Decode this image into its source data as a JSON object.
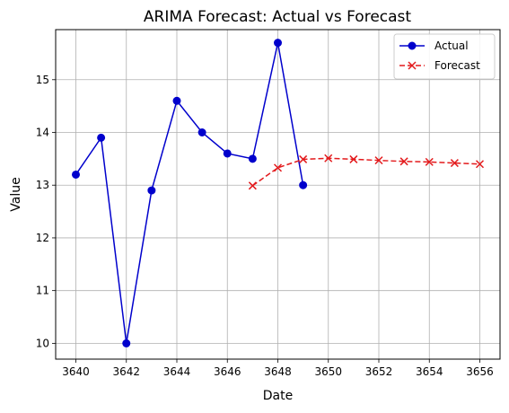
{
  "chart_data": {
    "type": "line",
    "title": "ARIMA Forecast: Actual vs Forecast",
    "xlabel": "Date",
    "ylabel": "Value",
    "xlim": [
      3639.2,
      3656.8
    ],
    "ylim": [
      9.7,
      15.95
    ],
    "xticks": [
      3640,
      3642,
      3644,
      3646,
      3648,
      3650,
      3652,
      3654,
      3656
    ],
    "yticks": [
      10,
      11,
      12,
      13,
      14,
      15
    ],
    "grid": true,
    "legend_position": "top-right",
    "series": [
      {
        "name": "Actual",
        "color": "#0000cc",
        "marker": "circle",
        "linestyle": "solid",
        "x": [
          3640,
          3641,
          3642,
          3643,
          3644,
          3645,
          3646,
          3647,
          3648,
          3649
        ],
        "y": [
          13.2,
          13.9,
          10.0,
          12.9,
          14.6,
          14.0,
          13.6,
          13.5,
          15.7,
          13.0
        ]
      },
      {
        "name": "Forecast",
        "color": "#e31a1c",
        "marker": "x",
        "linestyle": "dashed",
        "x": [
          3647,
          3648,
          3649,
          3650,
          3651,
          3652,
          3653,
          3654,
          3655,
          3656
        ],
        "y": [
          12.99,
          13.33,
          13.49,
          13.51,
          13.49,
          13.47,
          13.45,
          13.44,
          13.42,
          13.4
        ]
      }
    ]
  }
}
